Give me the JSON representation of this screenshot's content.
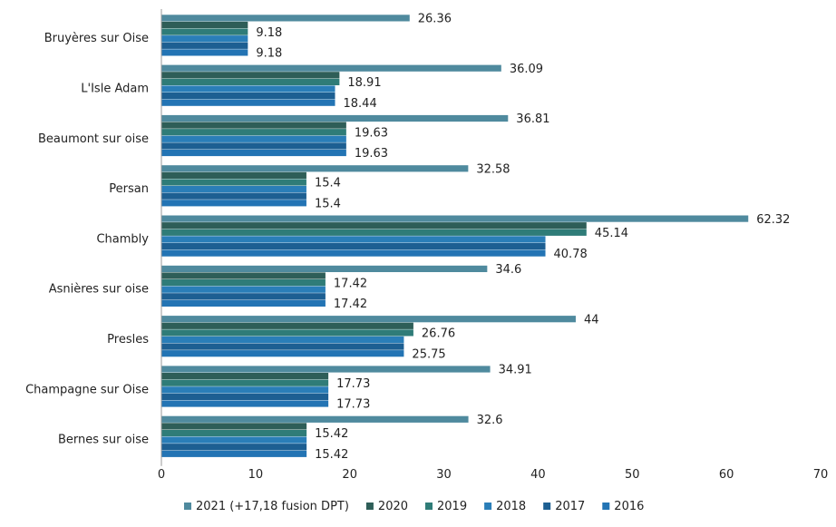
{
  "chart_data": {
    "type": "bar",
    "orientation": "horizontal",
    "categories": [
      "Bruyères sur Oise",
      "L'Isle Adam",
      "Beaumont sur oise",
      "Persan",
      "Chambly",
      "Asnières sur oise",
      "Presles",
      "Champagne sur Oise",
      "Bernes sur oise"
    ],
    "series": [
      {
        "name": "2021 (+17,18 fusion DPT)",
        "color": "#4f8a9e",
        "values": [
          26.36,
          36.09,
          36.81,
          32.58,
          62.32,
          34.6,
          44,
          34.91,
          32.6
        ]
      },
      {
        "name": "2020",
        "color": "#2e5e58",
        "values": [
          9.18,
          18.91,
          19.63,
          15.4,
          45.14,
          17.42,
          26.76,
          17.73,
          15.42
        ]
      },
      {
        "name": "2019",
        "color": "#2f7c78",
        "values": [
          9.18,
          18.91,
          19.63,
          15.4,
          45.14,
          17.42,
          26.76,
          17.73,
          15.42
        ]
      },
      {
        "name": "2018",
        "color": "#2a7eb8",
        "values": [
          9.18,
          18.44,
          19.63,
          15.4,
          40.78,
          17.42,
          25.75,
          17.73,
          15.42
        ]
      },
      {
        "name": "2017",
        "color": "#1d5f92",
        "values": [
          9.18,
          18.44,
          19.63,
          15.4,
          40.78,
          17.42,
          25.75,
          17.73,
          15.42
        ]
      },
      {
        "name": "2016",
        "color": "#2374b4",
        "values": [
          9.18,
          18.44,
          19.63,
          15.4,
          40.78,
          17.42,
          25.75,
          17.73,
          15.42
        ]
      }
    ],
    "data_labels": [
      [
        "26.36",
        "9.18",
        "9.18"
      ],
      [
        "36.09",
        "18.91",
        "18.44"
      ],
      [
        "36.81",
        "19.63",
        "19.63"
      ],
      [
        "32.58",
        "15.4",
        "15.4"
      ],
      [
        "62.32",
        "45.14",
        "40.78"
      ],
      [
        "34.6",
        "17.42",
        "17.42"
      ],
      [
        "44",
        "26.76",
        "25.75"
      ],
      [
        "34.91",
        "17.73",
        "17.73"
      ],
      [
        "32.6",
        "15.42",
        "15.42"
      ]
    ],
    "x_ticks": [
      "0",
      "10",
      "20",
      "30",
      "40",
      "50",
      "60",
      "70"
    ],
    "xlim": [
      0,
      70
    ],
    "legend_position": "bottom",
    "grid": false
  }
}
